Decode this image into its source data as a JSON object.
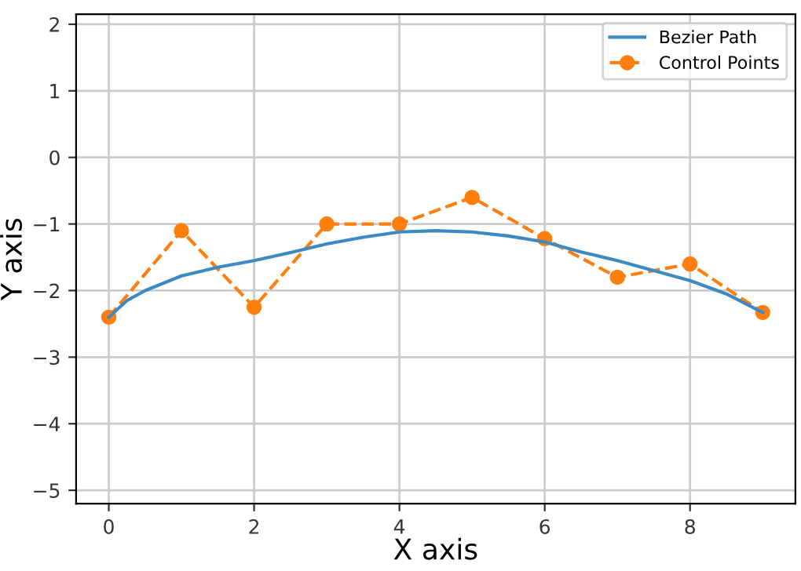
{
  "chart_data": {
    "type": "line",
    "xlabel": "X axis",
    "ylabel": "Y axis",
    "xlim": [
      -0.45,
      9.45
    ],
    "ylim": [
      -5.2,
      2.15
    ],
    "xticks": [
      0,
      2,
      4,
      6,
      8
    ],
    "yticks": [
      -5,
      -4,
      -3,
      -2,
      -1,
      0,
      1,
      2
    ],
    "grid": true,
    "legend": "top right",
    "series": [
      {
        "name": "Bezier Path",
        "color": "#3d89c2",
        "marker": "none",
        "line_style": "solid",
        "x": [
          0,
          0.25,
          0.5,
          1,
          1.5,
          2,
          2.5,
          3,
          3.5,
          4,
          4.5,
          5,
          5.5,
          6,
          6.5,
          7,
          7.5,
          8,
          8.5,
          9
        ],
        "values": [
          -2.4,
          -2.15,
          -2.0,
          -1.78,
          -1.65,
          -1.55,
          -1.43,
          -1.3,
          -1.2,
          -1.12,
          -1.1,
          -1.12,
          -1.18,
          -1.27,
          -1.42,
          -1.55,
          -1.7,
          -1.85,
          -2.05,
          -2.33
        ]
      },
      {
        "name": "Control Points",
        "color": "#ff7f0e",
        "marker": "circle",
        "line_style": "dashed",
        "x": [
          0,
          1,
          2,
          3,
          4,
          5,
          6,
          7,
          8,
          9
        ],
        "values": [
          -2.4,
          -1.1,
          -2.25,
          -1.0,
          -1.0,
          -0.6,
          -1.22,
          -1.8,
          -1.6,
          -2.33
        ]
      }
    ]
  }
}
